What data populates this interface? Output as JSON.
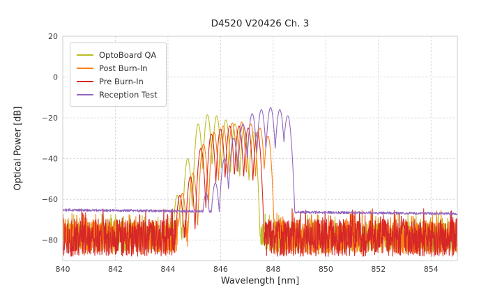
{
  "chart_data": {
    "type": "line",
    "title": "D4520 V20426 Ch. 3",
    "xlabel": "Wavelength [nm]",
    "ylabel": "Optical Power [dB]",
    "xlim": [
      840,
      855
    ],
    "ylim": [
      -90,
      20
    ],
    "xticks": [
      840,
      842,
      844,
      846,
      848,
      850,
      852,
      854
    ],
    "yticks": [
      20,
      0,
      -20,
      -40,
      -60,
      -80
    ],
    "grid": true,
    "grid_color": "#cccccc",
    "frame_color": "#cccccc",
    "legend_position": "upper left",
    "series": [
      {
        "name": "OptoBoard QA",
        "color": "#bcbd22",
        "seed": 11,
        "mode_width": 0.175,
        "mode_drop": 25,
        "modes": [
          [
            844.35,
            -58
          ],
          [
            844.75,
            -40
          ],
          [
            845.15,
            -23
          ],
          [
            845.5,
            -18.5
          ],
          [
            845.85,
            -19
          ],
          [
            846.2,
            -21
          ],
          [
            846.55,
            -23
          ],
          [
            846.9,
            -25
          ],
          [
            847.25,
            -27
          ]
        ],
        "floor": {
          "kind": "noisy",
          "top": -71,
          "depth": 15,
          "spike_up": 4
        }
      },
      {
        "name": "Post Burn-In",
        "color": "#ff7f0e",
        "seed": 22,
        "mode_width": 0.175,
        "mode_drop": 25,
        "modes": [
          [
            844.55,
            -57
          ],
          [
            844.95,
            -47
          ],
          [
            845.35,
            -33
          ],
          [
            845.75,
            -27
          ],
          [
            846.1,
            -24
          ],
          [
            846.45,
            -22.5
          ],
          [
            846.8,
            -22
          ],
          [
            847.15,
            -23
          ],
          [
            847.5,
            -25
          ],
          [
            847.8,
            -29
          ]
        ],
        "floor": {
          "kind": "noisy",
          "top": -70,
          "depth": 17,
          "spike_up": 5
        }
      },
      {
        "name": "Pre Burn-In",
        "color": "#d62728",
        "seed": 33,
        "mode_width": 0.175,
        "mode_drop": 25,
        "modes": [
          [
            844.45,
            -58
          ],
          [
            844.85,
            -49
          ],
          [
            845.25,
            -35
          ],
          [
            845.65,
            -28
          ],
          [
            846.0,
            -25.5
          ],
          [
            846.35,
            -24
          ],
          [
            846.7,
            -24
          ],
          [
            847.05,
            -25
          ],
          [
            847.4,
            -27
          ]
        ],
        "floor": {
          "kind": "noisy",
          "top": -69.5,
          "depth": 18.5,
          "spike_up": 5
        }
      },
      {
        "name": "Reception Test",
        "color": "#9467bd",
        "seed": 44,
        "mode_width": 0.175,
        "mode_drop": 20,
        "modes": [
          [
            845.45,
            -57
          ],
          [
            845.8,
            -52
          ],
          [
            846.15,
            -40
          ],
          [
            846.5,
            -30
          ],
          [
            846.85,
            -23
          ],
          [
            847.2,
            -18
          ],
          [
            847.55,
            -16
          ],
          [
            847.9,
            -15
          ],
          [
            848.25,
            -16
          ],
          [
            848.55,
            -19
          ]
        ],
        "floor": {
          "kind": "smooth",
          "start": -65.2,
          "end": -67.0,
          "jitter": 1.2
        }
      }
    ]
  }
}
